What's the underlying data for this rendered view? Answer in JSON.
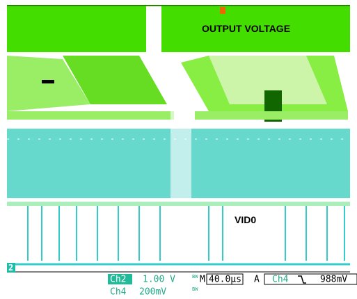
{
  "screen": {
    "labels": {
      "output_voltage": "OUTPUT VOLTAGE",
      "vid0": "VID0",
      "channel_marker": "2"
    },
    "status": {
      "row1": {
        "channel": "Ch2",
        "scale": "1.00 V",
        "bw": "BW",
        "timebase_prefix": "M",
        "timebase": "40.0µs",
        "trigger_mode": "A",
        "trigger_channel": "Ch4",
        "trigger_level": "988mV"
      },
      "row2": {
        "channel": "Ch4",
        "scale": "200mV",
        "bw": "BW"
      }
    }
  }
}
